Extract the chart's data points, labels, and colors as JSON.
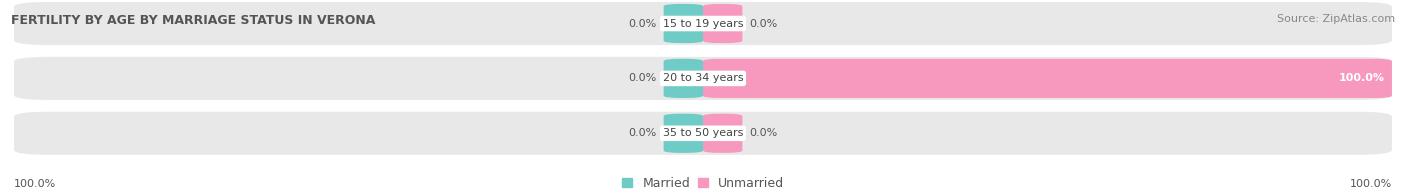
{
  "title": "FERTILITY BY AGE BY MARRIAGE STATUS IN VERONA",
  "source": "Source: ZipAtlas.com",
  "rows": [
    {
      "label": "15 to 19 years",
      "married": 0.0,
      "unmarried": 0.0
    },
    {
      "label": "20 to 34 years",
      "married": 0.0,
      "unmarried": 100.0
    },
    {
      "label": "35 to 50 years",
      "married": 0.0,
      "unmarried": 0.0
    }
  ],
  "married_color": "#6ecbc6",
  "unmarried_color": "#f799be",
  "bar_bg_color": "#e8e8e8",
  "married_label": "Married",
  "unmarried_label": "Unmarried",
  "left_footer": "100.0%",
  "right_footer": "100.0%",
  "title_fontsize": 9,
  "source_fontsize": 8,
  "label_fontsize": 8,
  "footer_fontsize": 8,
  "legend_fontsize": 9
}
